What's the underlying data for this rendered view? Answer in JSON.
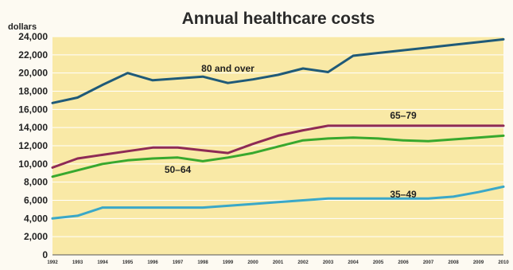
{
  "chart_data": {
    "type": "line",
    "title": "Annual healthcare costs",
    "ylabel": "dollars",
    "xlabel": "",
    "ylim": [
      0,
      24000
    ],
    "yticks": [
      0,
      2000,
      4000,
      6000,
      8000,
      10000,
      12000,
      14000,
      16000,
      18000,
      20000,
      22000,
      24000
    ],
    "ytick_labels": [
      "0",
      "2,000",
      "4,000",
      "6,000",
      "8,000",
      "10,000",
      "12,000",
      "14,000",
      "16,000",
      "18,000",
      "20,000",
      "22,000",
      "24,000"
    ],
    "x": [
      "1992",
      "1993",
      "1994",
      "1995",
      "1996",
      "1997",
      "1998",
      "1999",
      "2000",
      "2001",
      "2002",
      "2003",
      "2004",
      "2005",
      "2006",
      "2007",
      "2008",
      "2009",
      "2010"
    ],
    "grid": true,
    "series": [
      {
        "name": "80 and over",
        "color": "#1f5a78",
        "values": [
          16700,
          17300,
          18700,
          20000,
          19200,
          19400,
          19600,
          18900,
          19300,
          19800,
          20500,
          20100,
          21900,
          22200,
          22500,
          22800,
          23100,
          23400,
          23700
        ]
      },
      {
        "name": "65–79",
        "color": "#8e2a55",
        "values": [
          9600,
          10600,
          11000,
          11400,
          11800,
          11800,
          11500,
          11200,
          12200,
          13100,
          13700,
          14200,
          14200,
          14200,
          14200,
          14200,
          14200,
          14200,
          14200
        ]
      },
      {
        "name": "50–64",
        "color": "#38a82e",
        "values": [
          8600,
          9300,
          10000,
          10400,
          10600,
          10700,
          10300,
          10700,
          11200,
          11900,
          12600,
          12800,
          12900,
          12800,
          12600,
          12500,
          12700,
          12900,
          13100
        ]
      },
      {
        "name": "35–49",
        "color": "#3aa8c8",
        "values": [
          4000,
          4300,
          5200,
          5200,
          5200,
          5200,
          5200,
          5400,
          5600,
          5800,
          6000,
          6200,
          6200,
          6200,
          6200,
          6200,
          6400,
          6900,
          7500
        ]
      }
    ]
  }
}
